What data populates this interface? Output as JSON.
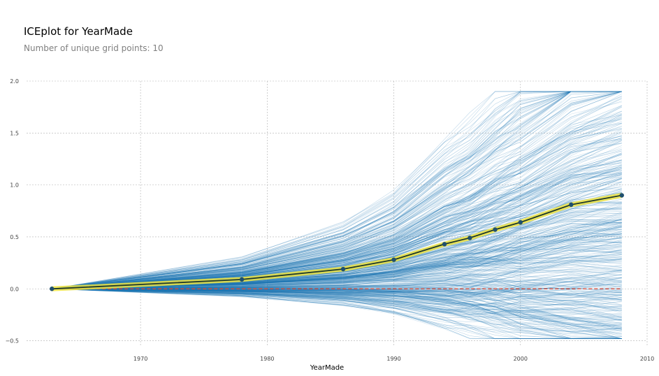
{
  "header": {
    "title": "ICEplot for YearMade",
    "subtitle": "Number of unique grid points: 10"
  },
  "chart_data": {
    "type": "line",
    "title": "ICEplot for YearMade",
    "subtitle": "Number of unique grid points: 10",
    "xlabel": "YearMade",
    "ylabel": "",
    "xlim": [
      1961,
      2010
    ],
    "ylim": [
      -0.55,
      2.0
    ],
    "xticks": [
      1970,
      1980,
      1990,
      2000,
      2010
    ],
    "yticks": [
      -0.5,
      0.0,
      0.5,
      1.0,
      1.5,
      2.0
    ],
    "ytick_labels": [
      "−0.5",
      "0.0",
      "0.5",
      "1.0",
      "1.5",
      "2.0"
    ],
    "grid": true,
    "x": [
      1963,
      1978,
      1986,
      1990,
      1994,
      1996,
      1998,
      2000,
      2004,
      2008
    ],
    "series": [
      {
        "name": "",
        "role": "average ICE (PDP)",
        "values": [
          0.0,
          0.09,
          0.19,
          0.28,
          0.43,
          0.49,
          0.57,
          0.64,
          0.81,
          0.9
        ]
      }
    ],
    "baseline": 0.0,
    "ice_lines_shown": "approx. 500 individual lines",
    "colors": {
      "ice": "#1f77b4",
      "pdp_line": "#1f3a2a",
      "pdp_band": "#f0e442",
      "pdp_marker": "#1f4f6e",
      "baseline": "#e0452f",
      "grid": "#b0b0b0"
    }
  }
}
